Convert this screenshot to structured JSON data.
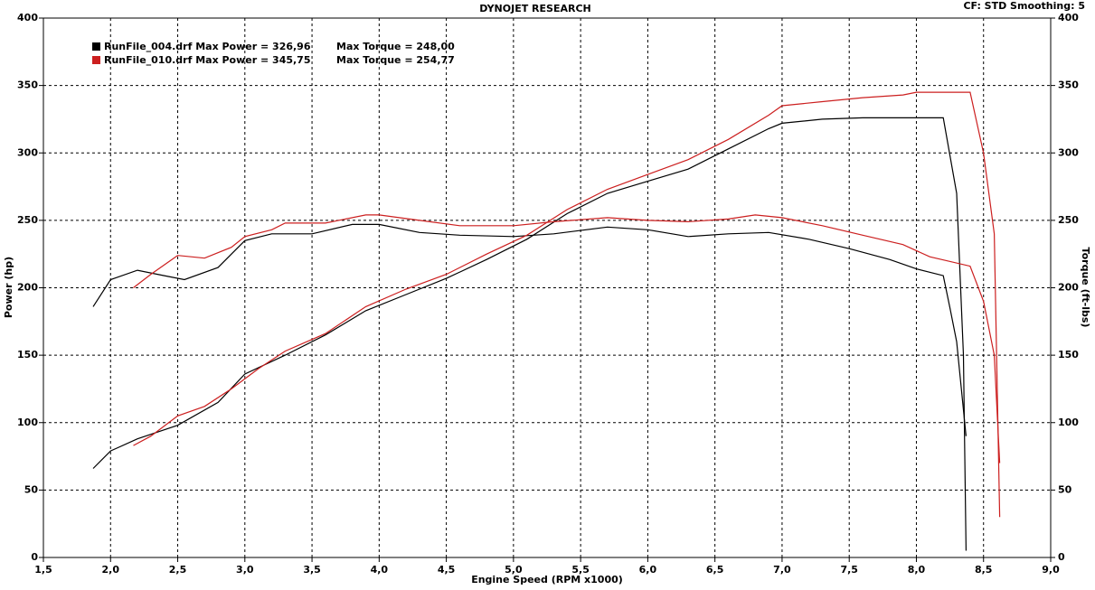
{
  "chart_data": {
    "type": "line",
    "title": "DYNOJET RESEARCH",
    "subtitle": "CF: STD  Smoothing: 5",
    "x_label": "Engine Speed (RPM x1000)",
    "y_label": "Power (hp)",
    "y2_label": "Torque (ft-lbs)",
    "xlim": [
      1.5,
      9.0
    ],
    "ylim": [
      0,
      400
    ],
    "y2lim": [
      0,
      400
    ],
    "grid": true,
    "xticks": [
      {
        "value": 1.5,
        "label": "1,5"
      },
      {
        "value": 2.0,
        "label": "2,0"
      },
      {
        "value": 2.5,
        "label": "2,5"
      },
      {
        "value": 3.0,
        "label": "3,0"
      },
      {
        "value": 3.5,
        "label": "3,5"
      },
      {
        "value": 4.0,
        "label": "4,0"
      },
      {
        "value": 4.5,
        "label": "4,5"
      },
      {
        "value": 5.0,
        "label": "5,0"
      },
      {
        "value": 5.5,
        "label": "5,5"
      },
      {
        "value": 6.0,
        "label": "6,0"
      },
      {
        "value": 6.5,
        "label": "6,5"
      },
      {
        "value": 7.0,
        "label": "7,0"
      },
      {
        "value": 7.5,
        "label": "7,5"
      },
      {
        "value": 8.0,
        "label": "8,0"
      },
      {
        "value": 8.5,
        "label": "8,5"
      },
      {
        "value": 9.0,
        "label": "9,0"
      }
    ],
    "yticks": [
      0,
      50,
      100,
      150,
      200,
      250,
      300,
      350,
      400
    ],
    "y2ticks": [
      0,
      50,
      100,
      150,
      200,
      250,
      300,
      350,
      400
    ],
    "legend": [
      {
        "label": "RunFile_004.drf Max Power = 326,96",
        "torque_label": "Max Torque = 248,00",
        "color": "#000000"
      },
      {
        "label": "RunFile_010.drf Max Power = 345,75",
        "torque_label": "Max Torque = 254,77",
        "color": "#cc1f1f"
      }
    ],
    "series": [
      {
        "color": "#000000",
        "x": [
          1.87,
          2.0,
          2.2,
          2.5,
          2.8,
          3.0,
          3.3,
          3.6,
          3.9,
          4.2,
          4.5,
          4.8,
          5.1,
          5.4,
          5.7,
          6.0,
          6.3,
          6.6,
          6.9,
          7.0,
          7.3,
          7.6,
          8.0,
          8.2,
          8.3,
          8.35,
          8.37
        ],
        "values": [
          66,
          79,
          88,
          98,
          115,
          136,
          150,
          165,
          183,
          195,
          207,
          221,
          236,
          255,
          270,
          279,
          288,
          303,
          318,
          322,
          325,
          326,
          326,
          326,
          270,
          150,
          5
        ]
      },
      {
        "color": "#000000",
        "axis": "y2",
        "x": [
          1.87,
          2.0,
          2.2,
          2.4,
          2.55,
          2.8,
          3.0,
          3.2,
          3.5,
          3.8,
          4.0,
          4.3,
          4.6,
          5.0,
          5.3,
          5.7,
          6.0,
          6.3,
          6.6,
          6.9,
          7.2,
          7.5,
          7.8,
          8.0,
          8.2,
          8.25,
          8.3,
          8.37
        ],
        "values": [
          186,
          206,
          213,
          209,
          206,
          215,
          235,
          240,
          240,
          247,
          247,
          241,
          239,
          238,
          240,
          245,
          243,
          238,
          240,
          241,
          236,
          229,
          221,
          214,
          209,
          185,
          160,
          90
        ]
      },
      {
        "color": "#cc1f1f",
        "x": [
          2.17,
          2.3,
          2.5,
          2.7,
          2.9,
          3.1,
          3.3,
          3.6,
          3.9,
          4.2,
          4.5,
          4.8,
          5.1,
          5.4,
          5.7,
          6.0,
          6.3,
          6.6,
          6.9,
          7.0,
          7.3,
          7.6,
          7.9,
          8.0,
          8.2,
          8.4,
          8.5,
          8.58,
          8.62
        ],
        "values": [
          83,
          90,
          105,
          112,
          125,
          140,
          153,
          166,
          186,
          199,
          210,
          225,
          239,
          258,
          273,
          284,
          295,
          310,
          328,
          335,
          338,
          341,
          343,
          345,
          345,
          345,
          300,
          240,
          30
        ]
      },
      {
        "color": "#cc1f1f",
        "axis": "y2",
        "x": [
          2.17,
          2.3,
          2.5,
          2.7,
          2.9,
          3.0,
          3.2,
          3.3,
          3.6,
          3.9,
          4.0,
          4.3,
          4.6,
          5.0,
          5.3,
          5.7,
          6.0,
          6.3,
          6.6,
          6.8,
          7.0,
          7.3,
          7.6,
          7.9,
          8.1,
          8.4,
          8.5,
          8.58,
          8.62
        ],
        "values": [
          200,
          210,
          224,
          222,
          230,
          238,
          243,
          248,
          248,
          254,
          254,
          250,
          246,
          246,
          249,
          252,
          250,
          249,
          251,
          254,
          252,
          246,
          239,
          232,
          223,
          216,
          190,
          150,
          70
        ]
      }
    ]
  }
}
